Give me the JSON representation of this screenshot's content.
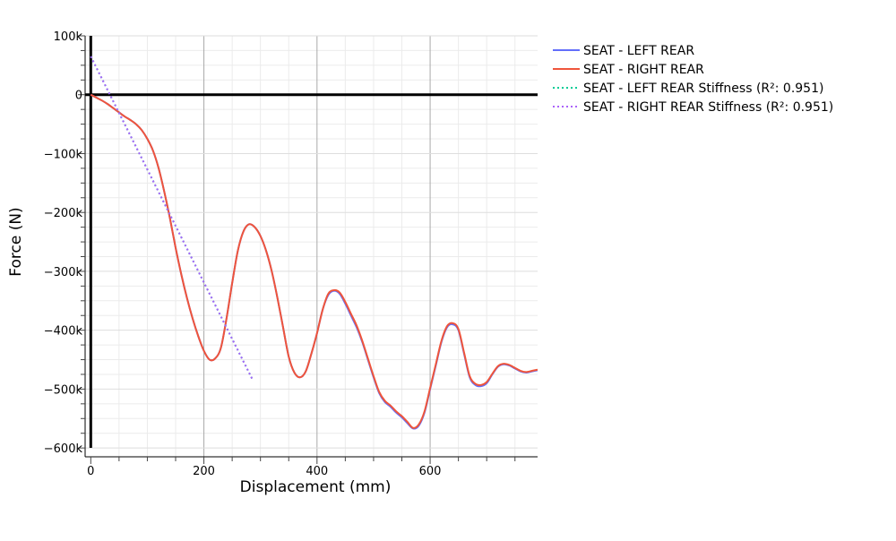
{
  "chart_data": {
    "type": "line",
    "title": "",
    "xlabel": "Displacement (mm)",
    "ylabel": "Force (N)",
    "xlim": [
      -10,
      790
    ],
    "ylim": [
      -615000,
      100000
    ],
    "x_ticks": [
      0,
      200,
      400,
      600
    ],
    "x_tick_labels": [
      "0",
      "200",
      "400",
      "600"
    ],
    "y_ticks": [
      100000,
      0,
      -100000,
      -200000,
      -300000,
      -400000,
      -500000,
      -600000
    ],
    "y_tick_labels": [
      "100k",
      "0",
      "−100k",
      "−200k",
      "−300k",
      "−400k",
      "−500k",
      "−600k"
    ],
    "grid": true,
    "legend_position": "top-right outside",
    "series": [
      {
        "name": "SEAT - LEFT REAR",
        "color": "#636efa",
        "dash": "solid",
        "x": [
          0,
          10,
          20,
          30,
          40,
          50,
          60,
          70,
          80,
          90,
          100,
          110,
          120,
          130,
          140,
          150,
          160,
          170,
          180,
          190,
          200,
          210,
          220,
          230,
          240,
          250,
          260,
          270,
          280,
          290,
          300,
          310,
          320,
          330,
          340,
          350,
          360,
          370,
          380,
          390,
          400,
          410,
          420,
          430,
          440,
          450,
          460,
          470,
          480,
          490,
          500,
          510,
          520,
          530,
          540,
          550,
          560,
          570,
          580,
          590,
          600,
          610,
          620,
          630,
          640,
          650,
          660,
          670,
          680,
          690,
          700,
          710,
          720,
          730,
          740,
          750,
          760,
          770,
          780,
          790
        ],
        "y": [
          0,
          -5000,
          -10000,
          -16000,
          -23000,
          -30000,
          -37000,
          -43000,
          -50000,
          -60000,
          -75000,
          -95000,
          -125000,
          -165000,
          -210000,
          -260000,
          -305000,
          -345000,
          -380000,
          -410000,
          -435000,
          -450000,
          -448000,
          -430000,
          -380000,
          -320000,
          -265000,
          -232000,
          -220000,
          -225000,
          -240000,
          -265000,
          -300000,
          -345000,
          -395000,
          -445000,
          -472000,
          -480000,
          -470000,
          -440000,
          -405000,
          -365000,
          -340000,
          -333000,
          -338000,
          -355000,
          -375000,
          -395000,
          -420000,
          -450000,
          -480000,
          -507000,
          -522000,
          -530000,
          -540000,
          -548000,
          -558000,
          -567000,
          -562000,
          -540000,
          -500000,
          -460000,
          -420000,
          -395000,
          -390000,
          -400000,
          -440000,
          -480000,
          -493000,
          -495000,
          -490000,
          -475000,
          -462000,
          -458000,
          -460000,
          -465000,
          -470000,
          -472000,
          -470000,
          -468000
        ]
      },
      {
        "name": "SEAT - RIGHT REAR",
        "color": "#ef553b",
        "dash": "solid",
        "x": [
          0,
          10,
          20,
          30,
          40,
          50,
          60,
          70,
          80,
          90,
          100,
          110,
          120,
          130,
          140,
          150,
          160,
          170,
          180,
          190,
          200,
          210,
          220,
          230,
          240,
          250,
          260,
          270,
          280,
          290,
          300,
          310,
          320,
          330,
          340,
          350,
          360,
          370,
          380,
          390,
          400,
          410,
          420,
          430,
          440,
          450,
          460,
          470,
          480,
          490,
          500,
          510,
          520,
          530,
          540,
          550,
          560,
          570,
          580,
          590,
          600,
          610,
          620,
          630,
          640,
          650,
          660,
          670,
          680,
          690,
          700,
          710,
          720,
          730,
          740,
          750,
          760,
          770,
          780,
          790
        ],
        "y": [
          0,
          -5000,
          -10000,
          -16000,
          -23000,
          -30000,
          -37000,
          -43000,
          -50000,
          -60000,
          -75000,
          -95000,
          -125000,
          -165000,
          -210000,
          -260000,
          -305000,
          -345000,
          -380000,
          -410000,
          -435000,
          -450000,
          -448000,
          -430000,
          -380000,
          -320000,
          -265000,
          -232000,
          -220000,
          -225000,
          -240000,
          -265000,
          -300000,
          -345000,
          -395000,
          -445000,
          -472000,
          -480000,
          -470000,
          -440000,
          -405000,
          -365000,
          -338000,
          -332000,
          -336000,
          -352000,
          -372000,
          -392000,
          -418000,
          -448000,
          -478000,
          -505000,
          -520000,
          -528000,
          -538000,
          -546000,
          -556000,
          -566000,
          -560000,
          -538000,
          -498000,
          -458000,
          -418000,
          -393000,
          -388000,
          -398000,
          -438000,
          -478000,
          -491000,
          -493000,
          -488000,
          -474000,
          -461000,
          -457000,
          -459000,
          -464000,
          -469000,
          -471000,
          -469000,
          -467000
        ]
      },
      {
        "name": "SEAT - LEFT REAR Stiffness (R²: 0.951)",
        "color": "#00cc96",
        "dash": "dot",
        "x": [
          0,
          285
        ],
        "y": [
          65000,
          -482000
        ]
      },
      {
        "name": "SEAT - RIGHT REAR Stiffness (R²: 0.951)",
        "color": "#ab63fa",
        "dash": "dot",
        "x": [
          0,
          285
        ],
        "y": [
          65000,
          -482000
        ]
      }
    ]
  }
}
